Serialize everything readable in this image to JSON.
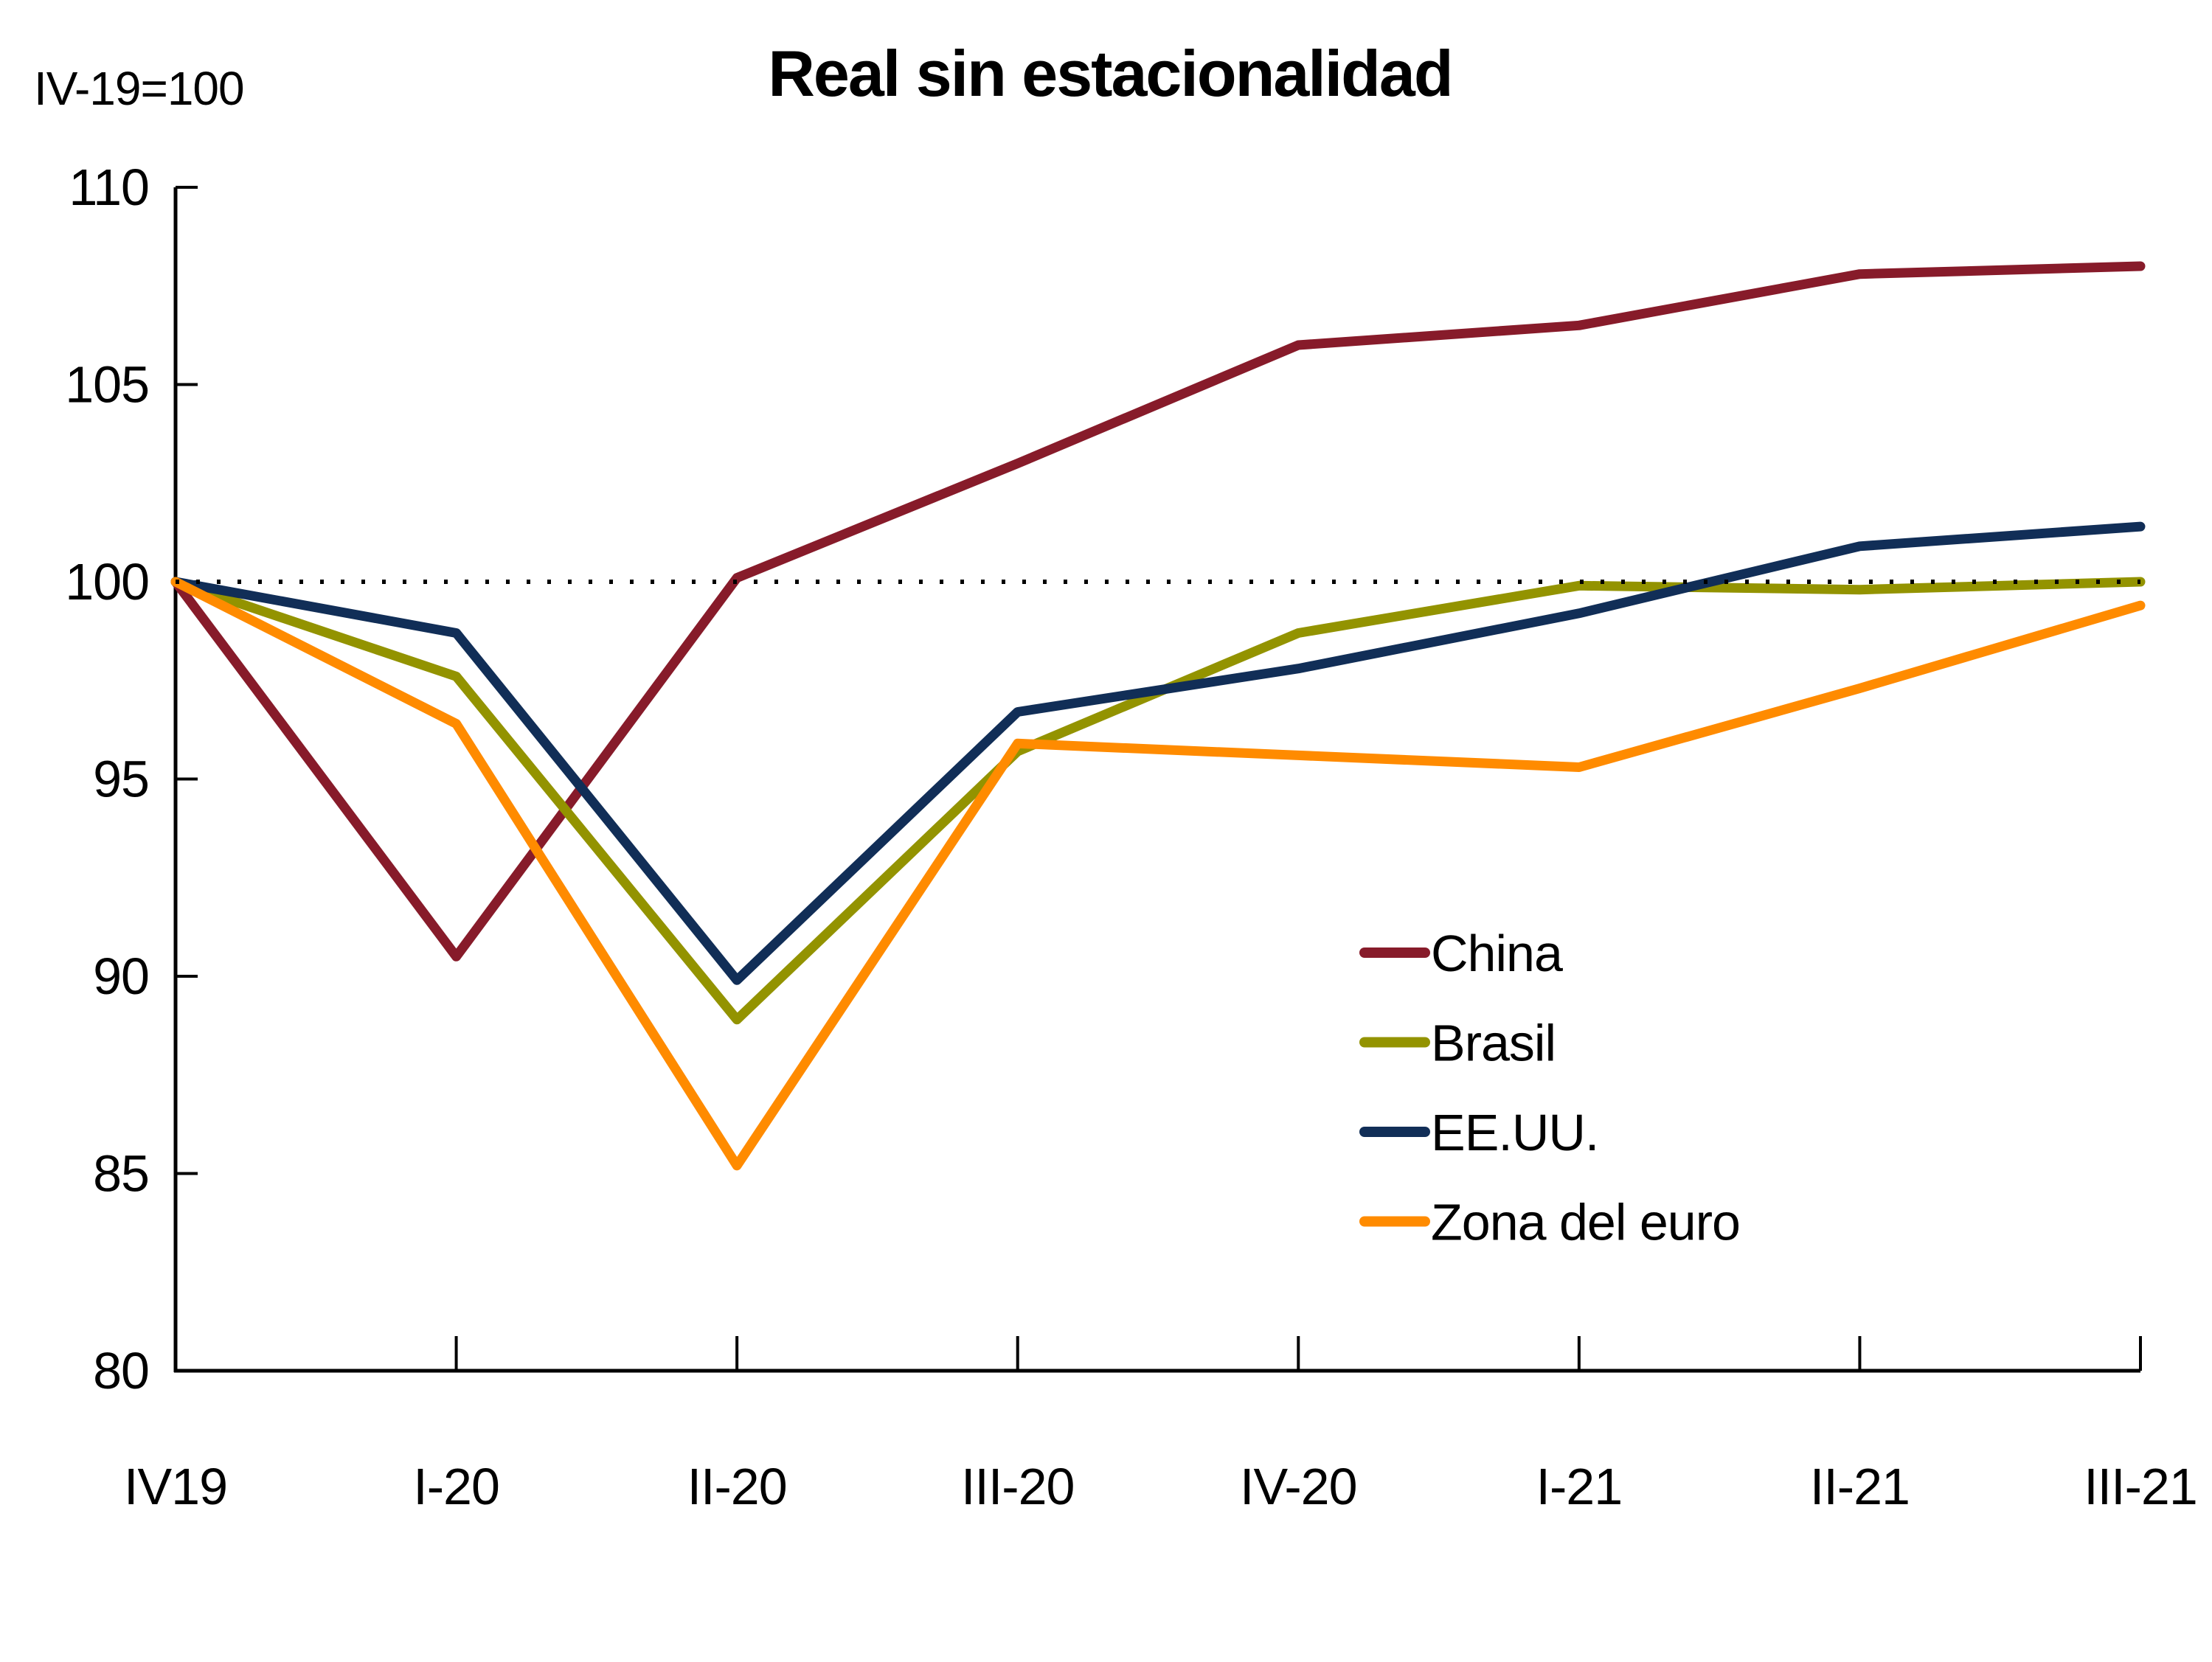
{
  "chart_data": {
    "type": "line",
    "title": "Real sin estacionalidad",
    "unit_note": "IV-19=100",
    "xlabel": "",
    "ylabel": "",
    "categories": [
      "IV19",
      "I-20",
      "II-20",
      "III-20",
      "IV-20",
      "I-21",
      "II-21",
      "III-21"
    ],
    "series": [
      {
        "name": "China",
        "color": "#871B2A",
        "values": [
          100,
          90.5,
          100.1,
          103.0,
          106.0,
          106.5,
          107.8,
          108.0
        ]
      },
      {
        "name": "Brasil",
        "color": "#939300",
        "values": [
          100,
          97.6,
          88.9,
          95.7,
          98.7,
          99.9,
          99.8,
          100.0
        ]
      },
      {
        "name": "EE.UU.",
        "color": "#112E57",
        "values": [
          100,
          98.7,
          89.9,
          96.7,
          97.8,
          99.2,
          100.9,
          101.4
        ]
      },
      {
        "name": "Zona del euro",
        "color": "#FF8B00",
        "values": [
          100,
          96.4,
          85.2,
          95.9,
          95.6,
          95.3,
          97.3,
          99.4
        ]
      }
    ],
    "ylim": [
      80,
      110
    ],
    "ytick_step": 5,
    "reference_line": 100,
    "grid": false,
    "legend_position": "center-right",
    "axis_color": "#000000",
    "text_color": "#000000"
  }
}
